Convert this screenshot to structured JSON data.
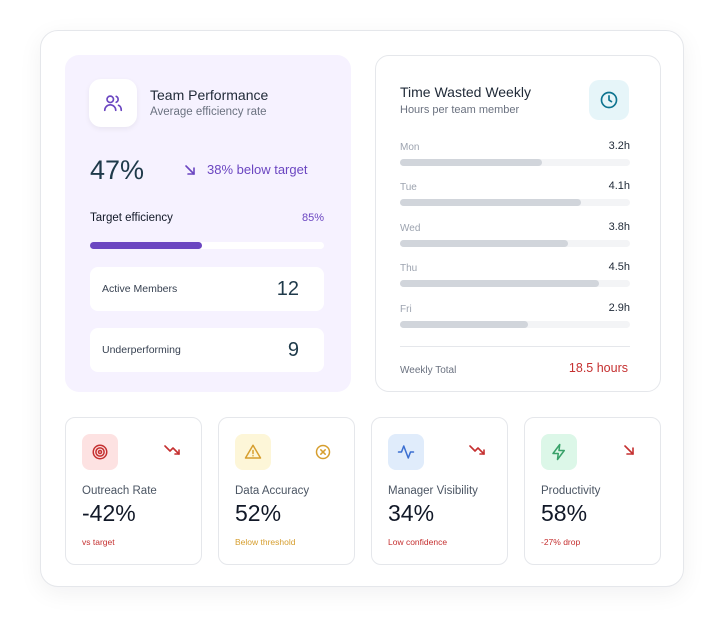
{
  "team": {
    "title": "Team Performance",
    "subtitle": "Average efficiency rate",
    "icon": "users-icon",
    "percent": "47%",
    "below_text": "38% below target",
    "target_label": "Target efficiency",
    "target_value": "85%",
    "target_fill_fraction": 0.48,
    "active_label": "Active Members",
    "active_value": "12",
    "under_label": "Underperforming",
    "under_value": "9",
    "accent": "#6b46c1"
  },
  "time": {
    "title": "Time Wasted Weekly",
    "subtitle": "Hours per team member",
    "icon": "clock-icon",
    "days": [
      {
        "name": "Mon",
        "value": "3.2h",
        "hours": 3.2
      },
      {
        "name": "Tue",
        "value": "4.1h",
        "hours": 4.1
      },
      {
        "name": "Wed",
        "value": "3.8h",
        "hours": 3.8
      },
      {
        "name": "Thu",
        "value": "4.5h",
        "hours": 4.5
      },
      {
        "name": "Fri",
        "value": "2.9h",
        "hours": 2.9
      }
    ],
    "total_label": "Weekly Total",
    "total_value": "18.5 hours",
    "total_color": "#c53030"
  },
  "metrics": [
    {
      "title": "Outreach Rate",
      "value": "-42%",
      "sub": "vs target",
      "icon": "target-icon",
      "trend_icon": "trending-down-icon",
      "icon_bg": "#fde2e2",
      "icon_color": "#c53030",
      "sub_color": "#c53030",
      "trend_color": "#c53030"
    },
    {
      "title": "Data Accuracy",
      "value": "52%",
      "sub": "Below threshold",
      "icon": "warning-icon",
      "trend_icon": "x-circle-icon",
      "icon_bg": "#fdf6d8",
      "icon_color": "#d69e2e",
      "sub_color": "#d69e2e",
      "trend_color": "#d69e2e"
    },
    {
      "title": "Manager Visibility",
      "value": "34%",
      "sub": "Low confidence",
      "icon": "activity-icon",
      "trend_icon": "trending-down-icon",
      "icon_bg": "#e0ecfb",
      "icon_color": "#3b6fd1",
      "sub_color": "#c53030",
      "trend_color": "#c53030"
    },
    {
      "title": "Productivity",
      "value": "58%",
      "sub": "-27% drop",
      "icon": "bolt-icon",
      "trend_icon": "arrow-down-right-icon",
      "icon_bg": "#dcf7e8",
      "icon_color": "#38a169",
      "sub_color": "#c53030",
      "trend_color": "#c53030"
    }
  ]
}
